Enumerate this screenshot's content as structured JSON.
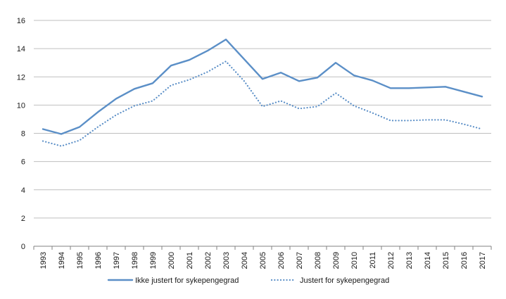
{
  "chart_data": {
    "type": "line",
    "x": [
      "1993",
      "1994",
      "1995",
      "1996",
      "1997",
      "1998",
      "1999",
      "2000",
      "2001",
      "2002",
      "2003",
      "2004",
      "2005",
      "2006",
      "2007",
      "2008",
      "2009",
      "2010",
      "2011",
      "2012",
      "2013",
      "2014",
      "2015",
      "2016",
      "2017"
    ],
    "ylim": [
      0,
      16
    ],
    "yticks": [
      "0",
      "2",
      "4",
      "6",
      "8",
      "10",
      "12",
      "14",
      "16"
    ],
    "grid": "horizontal",
    "legend_position": "bottom",
    "series": [
      {
        "name": "Ikke justert for sykepengegrad",
        "style": "solid",
        "color": "#5b8fc7",
        "values": [
          8.3,
          7.95,
          8.45,
          9.5,
          10.45,
          11.15,
          11.55,
          12.8,
          13.2,
          13.85,
          14.65,
          13.25,
          11.85,
          12.3,
          11.7,
          11.95,
          13.0,
          12.1,
          11.75,
          11.2,
          11.2,
          11.25,
          11.3,
          10.95,
          10.6
        ]
      },
      {
        "name": "Justert for sykepengegrad",
        "style": "dotted",
        "color": "#5b8fc7",
        "values": [
          7.45,
          7.1,
          7.5,
          8.45,
          9.3,
          9.95,
          10.3,
          11.4,
          11.8,
          12.35,
          13.1,
          11.7,
          9.9,
          10.3,
          9.75,
          9.9,
          10.85,
          9.95,
          9.45,
          8.9,
          8.9,
          8.95,
          8.95,
          8.65,
          8.3
        ]
      }
    ]
  },
  "colors": {
    "grid": "#bfbfbf",
    "axis": "#808080",
    "text": "#1a1a1a"
  }
}
